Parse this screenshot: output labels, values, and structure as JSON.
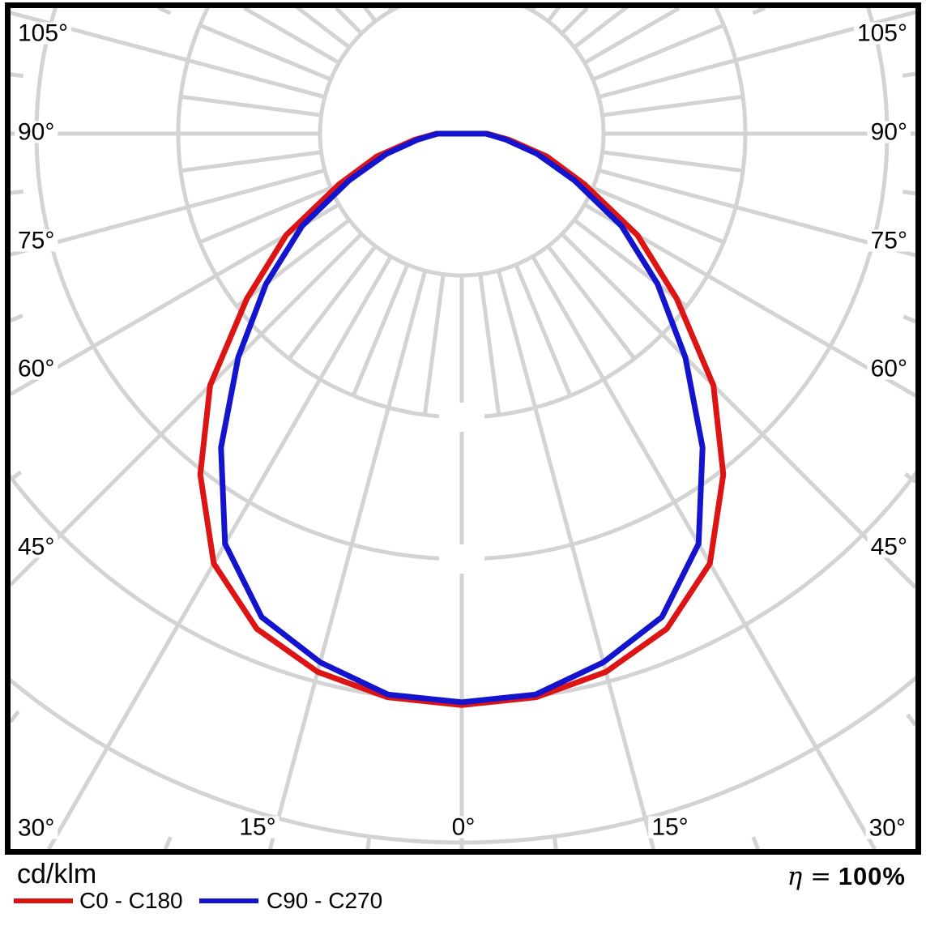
{
  "chart_data": {
    "type": "polar-line",
    "description": "Photometric luminous intensity distribution diagram (polar curve), pole at top center, 0 deg pointing down",
    "units_label": "cd/klm",
    "angle_labels": [
      "105°",
      "90°",
      "75°",
      "60°",
      "45°",
      "30°",
      "15°",
      "0°",
      "15°",
      "105°",
      "90°",
      "75°",
      "60°",
      "45°",
      "30°"
    ],
    "angle_axis": {
      "major_step_deg": 15,
      "fine_step_deg": 7.5,
      "max_labeled_deg": 105
    },
    "radial_axis": {
      "rings": 5,
      "ring_values_labeled": false,
      "unit": "ring-units (gridline spacings from pole)"
    },
    "gamma_deg": [
      0,
      7.5,
      15,
      22.5,
      30,
      37.5,
      45,
      52.5,
      60,
      67.5,
      75,
      82.5,
      90
    ],
    "series": [
      {
        "name": "C0 - C180",
        "color": "#dd1414",
        "symmetric": true,
        "r_rings": [
          4.03,
          4.01,
          3.93,
          3.78,
          3.5,
          3.03,
          2.51,
          1.91,
          1.43,
          0.94,
          0.62,
          0.34,
          0.18
        ]
      },
      {
        "name": "C90 - C270",
        "color": "#1414cf",
        "symmetric": true,
        "r_rings": [
          4.01,
          3.99,
          3.86,
          3.69,
          3.34,
          2.79,
          2.23,
          1.74,
          1.3,
          0.86,
          0.55,
          0.31,
          0.17
        ]
      }
    ],
    "grid_color": "#d3d3d3",
    "border_color": "#000000"
  },
  "legend": {
    "units": "cd/klm",
    "items": [
      {
        "label": "C0 - C180",
        "color": "#dd1414"
      },
      {
        "label": "C90 - C270",
        "color": "#1414cf"
      }
    ]
  },
  "efficiency": {
    "symbol": "η =",
    "value": "100%"
  }
}
